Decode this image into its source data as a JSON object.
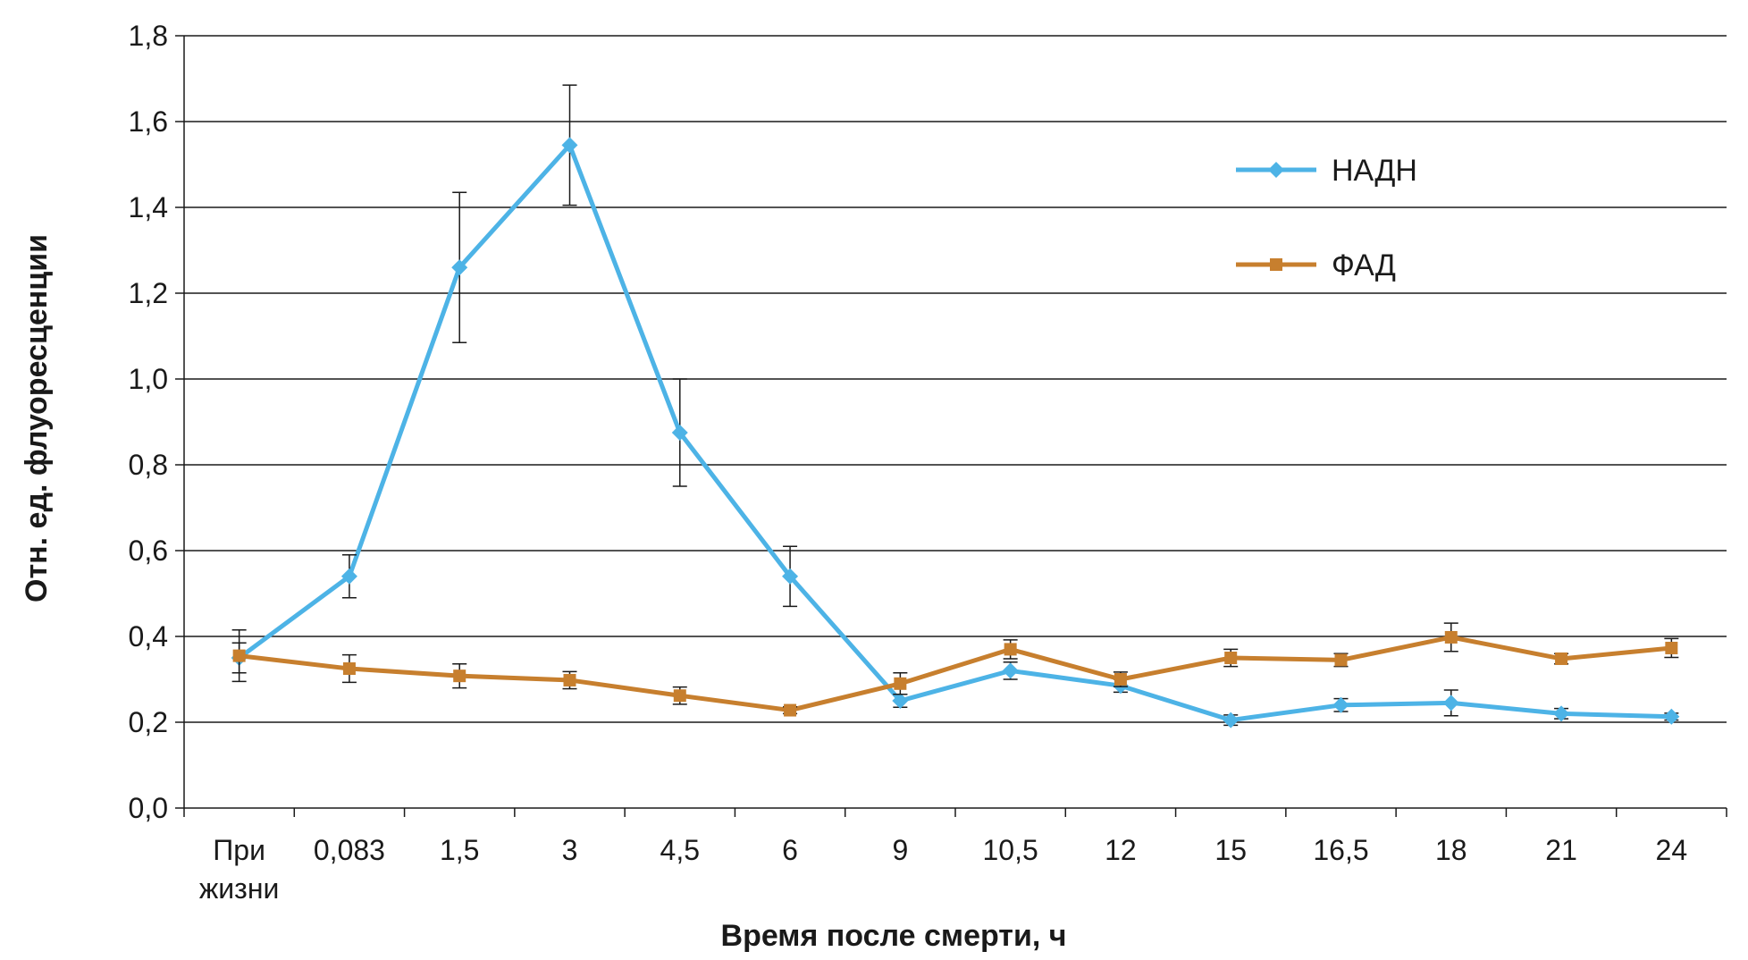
{
  "chart_data": {
    "type": "line",
    "xlabel": "Время после смерти, ч",
    "ylabel": "Отн. ед. флуоресценции",
    "categories": [
      [
        "При",
        "жизни"
      ],
      [
        "0,083"
      ],
      [
        "1,5"
      ],
      [
        "3"
      ],
      [
        "4,5"
      ],
      [
        "6"
      ],
      [
        "9"
      ],
      [
        "10,5"
      ],
      [
        "12"
      ],
      [
        "15"
      ],
      [
        "16,5"
      ],
      [
        "18"
      ],
      [
        "21"
      ],
      [
        "24"
      ]
    ],
    "ylim": [
      0,
      1.8
    ],
    "yticks": [
      "0,0",
      "0,2",
      "0,4",
      "0,6",
      "0,8",
      "1,0",
      "1,2",
      "1,4",
      "1,6",
      "1,8"
    ],
    "grid": true,
    "legend_position": "right",
    "series": [
      {
        "name": "НАДН",
        "color": "#4db3e6",
        "marker": "diamond",
        "values": [
          0.35,
          0.54,
          1.26,
          1.545,
          0.875,
          0.54,
          0.25,
          0.32,
          0.285,
          0.205,
          0.24,
          0.245,
          0.22,
          0.213
        ],
        "errors": [
          0.035,
          0.05,
          0.175,
          0.14,
          0.125,
          0.07,
          0.015,
          0.02,
          0.015,
          0.012,
          0.015,
          0.03,
          0.012,
          0.008
        ]
      },
      {
        "name": "ФАД",
        "color": "#c77f2e",
        "marker": "square",
        "values": [
          0.355,
          0.325,
          0.308,
          0.298,
          0.262,
          0.228,
          0.29,
          0.37,
          0.3,
          0.35,
          0.345,
          0.398,
          0.348,
          0.373
        ],
        "errors": [
          0.06,
          0.032,
          0.028,
          0.02,
          0.02,
          0.008,
          0.025,
          0.022,
          0.017,
          0.02,
          0.015,
          0.033,
          0.012,
          0.022
        ]
      }
    ]
  }
}
